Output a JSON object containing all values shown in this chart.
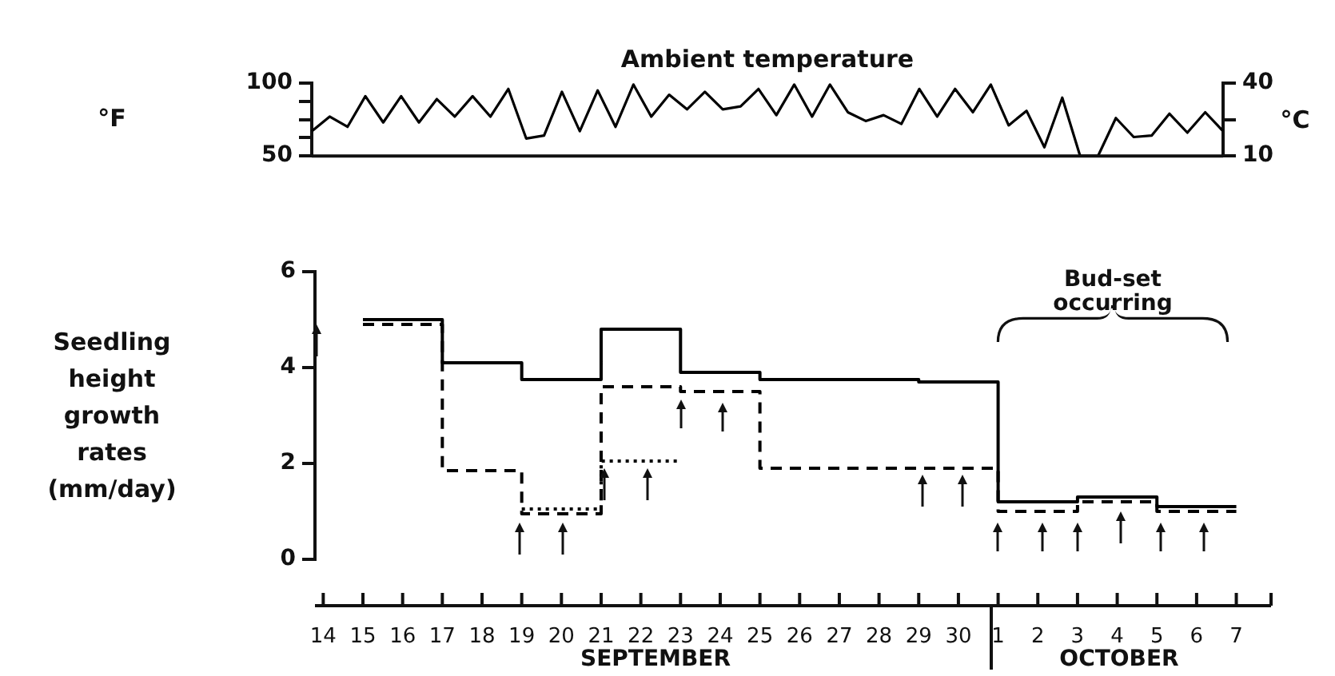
{
  "chart_data": [
    {
      "type": "line",
      "title": "Ambient temperature",
      "ylabel": "°F",
      "y2label": "°C",
      "categories": [
        null,
        null,
        null,
        null,
        null,
        null,
        null,
        null,
        null,
        null,
        null,
        null,
        null,
        null,
        null,
        null,
        null,
        null,
        null,
        null,
        null,
        null,
        null,
        null,
        null,
        null,
        null,
        null,
        null,
        null,
        null,
        null,
        null,
        null,
        null,
        null,
        null,
        null,
        null,
        null,
        null,
        null,
        null,
        null,
        null,
        null,
        null,
        null,
        null,
        null,
        null,
        null
      ],
      "ylim": [
        50,
        100
      ],
      "yticks": [
        50,
        {
          "value": 62.5,
          "label": null
        },
        {
          "value": 75,
          "label": null
        },
        {
          "value": 87.5,
          "label": null
        },
        100
      ],
      "y2lim": [
        10,
        40
      ],
      "y2ticks": [
        10,
        {
          "value": 25,
          "label": null
        },
        40
      ],
      "tick_labels": "y",
      "series": [
        {
          "color": "#000000",
          "values": [
            67,
            77,
            70,
            91,
            73,
            91,
            73,
            89,
            77,
            91,
            77,
            96,
            62,
            64,
            94,
            67,
            95,
            70,
            99,
            77,
            92,
            82,
            94,
            82,
            84,
            96,
            78,
            99,
            77,
            99,
            80,
            74,
            78,
            72,
            96,
            77,
            96,
            80,
            99,
            71,
            81,
            56,
            90,
            50,
            50,
            76,
            63,
            64,
            79,
            66,
            80,
            67
          ]
        }
      ]
    },
    {
      "type": "step",
      "ylabel": "Seedling height growth rates (mm/day)",
      "xlim": [
        "--09-13T19:00",
        "--10-07T21:00"
      ],
      "ylim": [
        0,
        6
      ],
      "yticks": [
        0,
        2,
        4,
        6
      ],
      "xticks": [
        {
          "value": "--09-14",
          "label": "14"
        },
        {
          "value": "--09-15",
          "label": "15"
        },
        {
          "value": "--09-16",
          "label": "16"
        },
        {
          "value": "--09-17",
          "label": "17"
        },
        {
          "value": "--09-18",
          "label": "18"
        },
        {
          "value": "--09-19",
          "label": "19"
        },
        {
          "value": "--09-20",
          "label": "20"
        },
        {
          "value": "--09-21",
          "label": "21"
        },
        {
          "value": "--09-22",
          "label": "22"
        },
        {
          "value": "--09-23",
          "label": "23"
        },
        {
          "value": "--09-24",
          "label": "24"
        },
        {
          "value": "--09-25",
          "label": "25"
        },
        {
          "value": "--09-26",
          "label": "26"
        },
        {
          "value": "--09-27",
          "label": "27"
        },
        {
          "value": "--09-28",
          "label": "28"
        },
        {
          "value": "--09-29",
          "label": "29"
        },
        {
          "value": "--09-30",
          "label": "30"
        },
        {
          "value": "--10-01",
          "label": "1"
        },
        {
          "value": "--10-02",
          "label": "2"
        },
        {
          "value": "--10-03",
          "label": "3"
        },
        {
          "value": "--10-04",
          "label": "4"
        },
        {
          "value": "--10-05",
          "label": "5"
        },
        {
          "value": "--10-06",
          "label": "6"
        },
        {
          "value": "--10-07",
          "label": "7"
        }
      ],
      "series": [
        {
          "color": "#000000",
          "line_style": "solid",
          "x": [
            "--09-15",
            "--09-17",
            "--09-19",
            "--09-21",
            "--09-23",
            "--09-25",
            "--09-29",
            "--10-01",
            "--10-03",
            "--10-05",
            "--10-07"
          ],
          "values": [
            5.0,
            4.1,
            3.75,
            4.8,
            3.9,
            3.75,
            3.7,
            1.2,
            1.3,
            1.1,
            1.1
          ]
        },
        {
          "color": "#000000",
          "line_style": "dashed",
          "x": [
            "--09-15",
            "--09-17",
            "--09-19",
            "--09-21",
            "--09-23",
            "--09-25",
            "--10-01",
            "--10-03",
            "--10-05",
            "--10-07"
          ],
          "values": [
            4.9,
            1.85,
            0.95,
            3.6,
            3.5,
            1.9,
            1.0,
            1.2,
            1.0,
            1.0
          ]
        },
        {
          "color": "#000000",
          "line_style": "dotted",
          "x": [
            "--09-19",
            "--09-21",
            "--09-23"
          ],
          "values": [
            1.05,
            2.05,
            2.05
          ]
        }
      ],
      "annotations": [
        "Bud-set occurring",
        "SEPTEMBER",
        "OCTOBER"
      ]
    }
  ]
}
